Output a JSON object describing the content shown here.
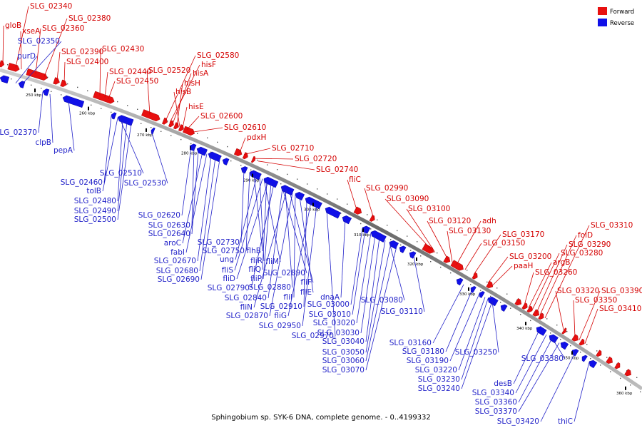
{
  "caption": "Sphingobium sp. SYK-6 DNA, complete genome. - 0..4199332",
  "legend": [
    {
      "label": "Forward",
      "color": "#e81010"
    },
    {
      "label": "Reverse",
      "color": "#1010e8"
    }
  ],
  "colors": {
    "forward": "#e81010",
    "reverse": "#1010e8",
    "forward_label": "#d40000",
    "reverse_label": "#1f1fc8",
    "backbone": "#888888"
  },
  "ticks": [
    "250 kbp",
    "260 kbp",
    "270 kbp",
    "280 kbp",
    "290 kbp",
    "300 kbp",
    "310 kbp",
    "320 kbp",
    "330 kbp",
    "340 kbp",
    "350 kbp",
    "360 kbp"
  ],
  "forward_genes": [
    "gloB",
    "SLG_02340",
    "xseA",
    "SLG_02360",
    "SLG_02380",
    "SLG_02390",
    "SLG_02400",
    "SLG_02430",
    "SLG_02440",
    "SLG_02450",
    "SLG_02520",
    "SLG_02580",
    "hisF",
    "hisA",
    "hisH",
    "hisB",
    "hisE",
    "SLG_02600",
    "SLG_02610",
    "pdxH",
    "SLG_02710",
    "SLG_02720",
    "SLG_02740",
    "fliC",
    "SLG_02990",
    "SLG_03090",
    "SLG_03100",
    "SLG_03120",
    "adh",
    "SLG_03130",
    "SLG_03170",
    "SLG_03150",
    "SLG_03200",
    "paaH",
    "SLG_03310",
    "folD",
    "SLG_03290",
    "SLG_03280",
    "argB",
    "SLG_03260",
    "SLG_03320",
    "SLG_03390",
    "SLG_03350",
    "SLG_03410"
  ],
  "reverse_genes": [
    "purD",
    "SLG_02350",
    "SLG_02370",
    "clpB",
    "pepA",
    "SLG_02460",
    "SLG_02510",
    "tolB",
    "SLG_02530",
    "SLG_02480",
    "SLG_02490",
    "SLG_02500",
    "SLG_02620",
    "SLG_02630",
    "SLG_02640",
    "aroC",
    "fabI",
    "SLG_02670",
    "SLG_02680",
    "SLG_02690",
    "SLG_02730",
    "SLG_02750",
    "flhB",
    "ung",
    "fliR",
    "fliM",
    "fliS",
    "fliQ",
    "fliD",
    "fliP",
    "SLG_02890",
    "SLG_02790",
    "SLG_02880",
    "fliF",
    "SLG_02840",
    "fliI",
    "fliE",
    "fliN",
    "SLG_02910",
    "dnaA",
    "SLG_02870",
    "fliG",
    "SLG_03000",
    "SLG_03080",
    "SLG_02950",
    "SLG_03010",
    "SLG_03110",
    "SLG_02970",
    "SLG_03020",
    "SLG_03030",
    "SLG_03040",
    "SLG_03050",
    "SLG_03060",
    "SLG_03070",
    "SLG_03160",
    "SLG_03180",
    "SLG_03190",
    "SLG_03250",
    "SLG_03220",
    "SLG_03230",
    "SLG_03240",
    "SLG_03380",
    "desB",
    "SLG_03340",
    "SLG_03360",
    "SLG_03370",
    "SLG_03420",
    "thiC"
  ]
}
